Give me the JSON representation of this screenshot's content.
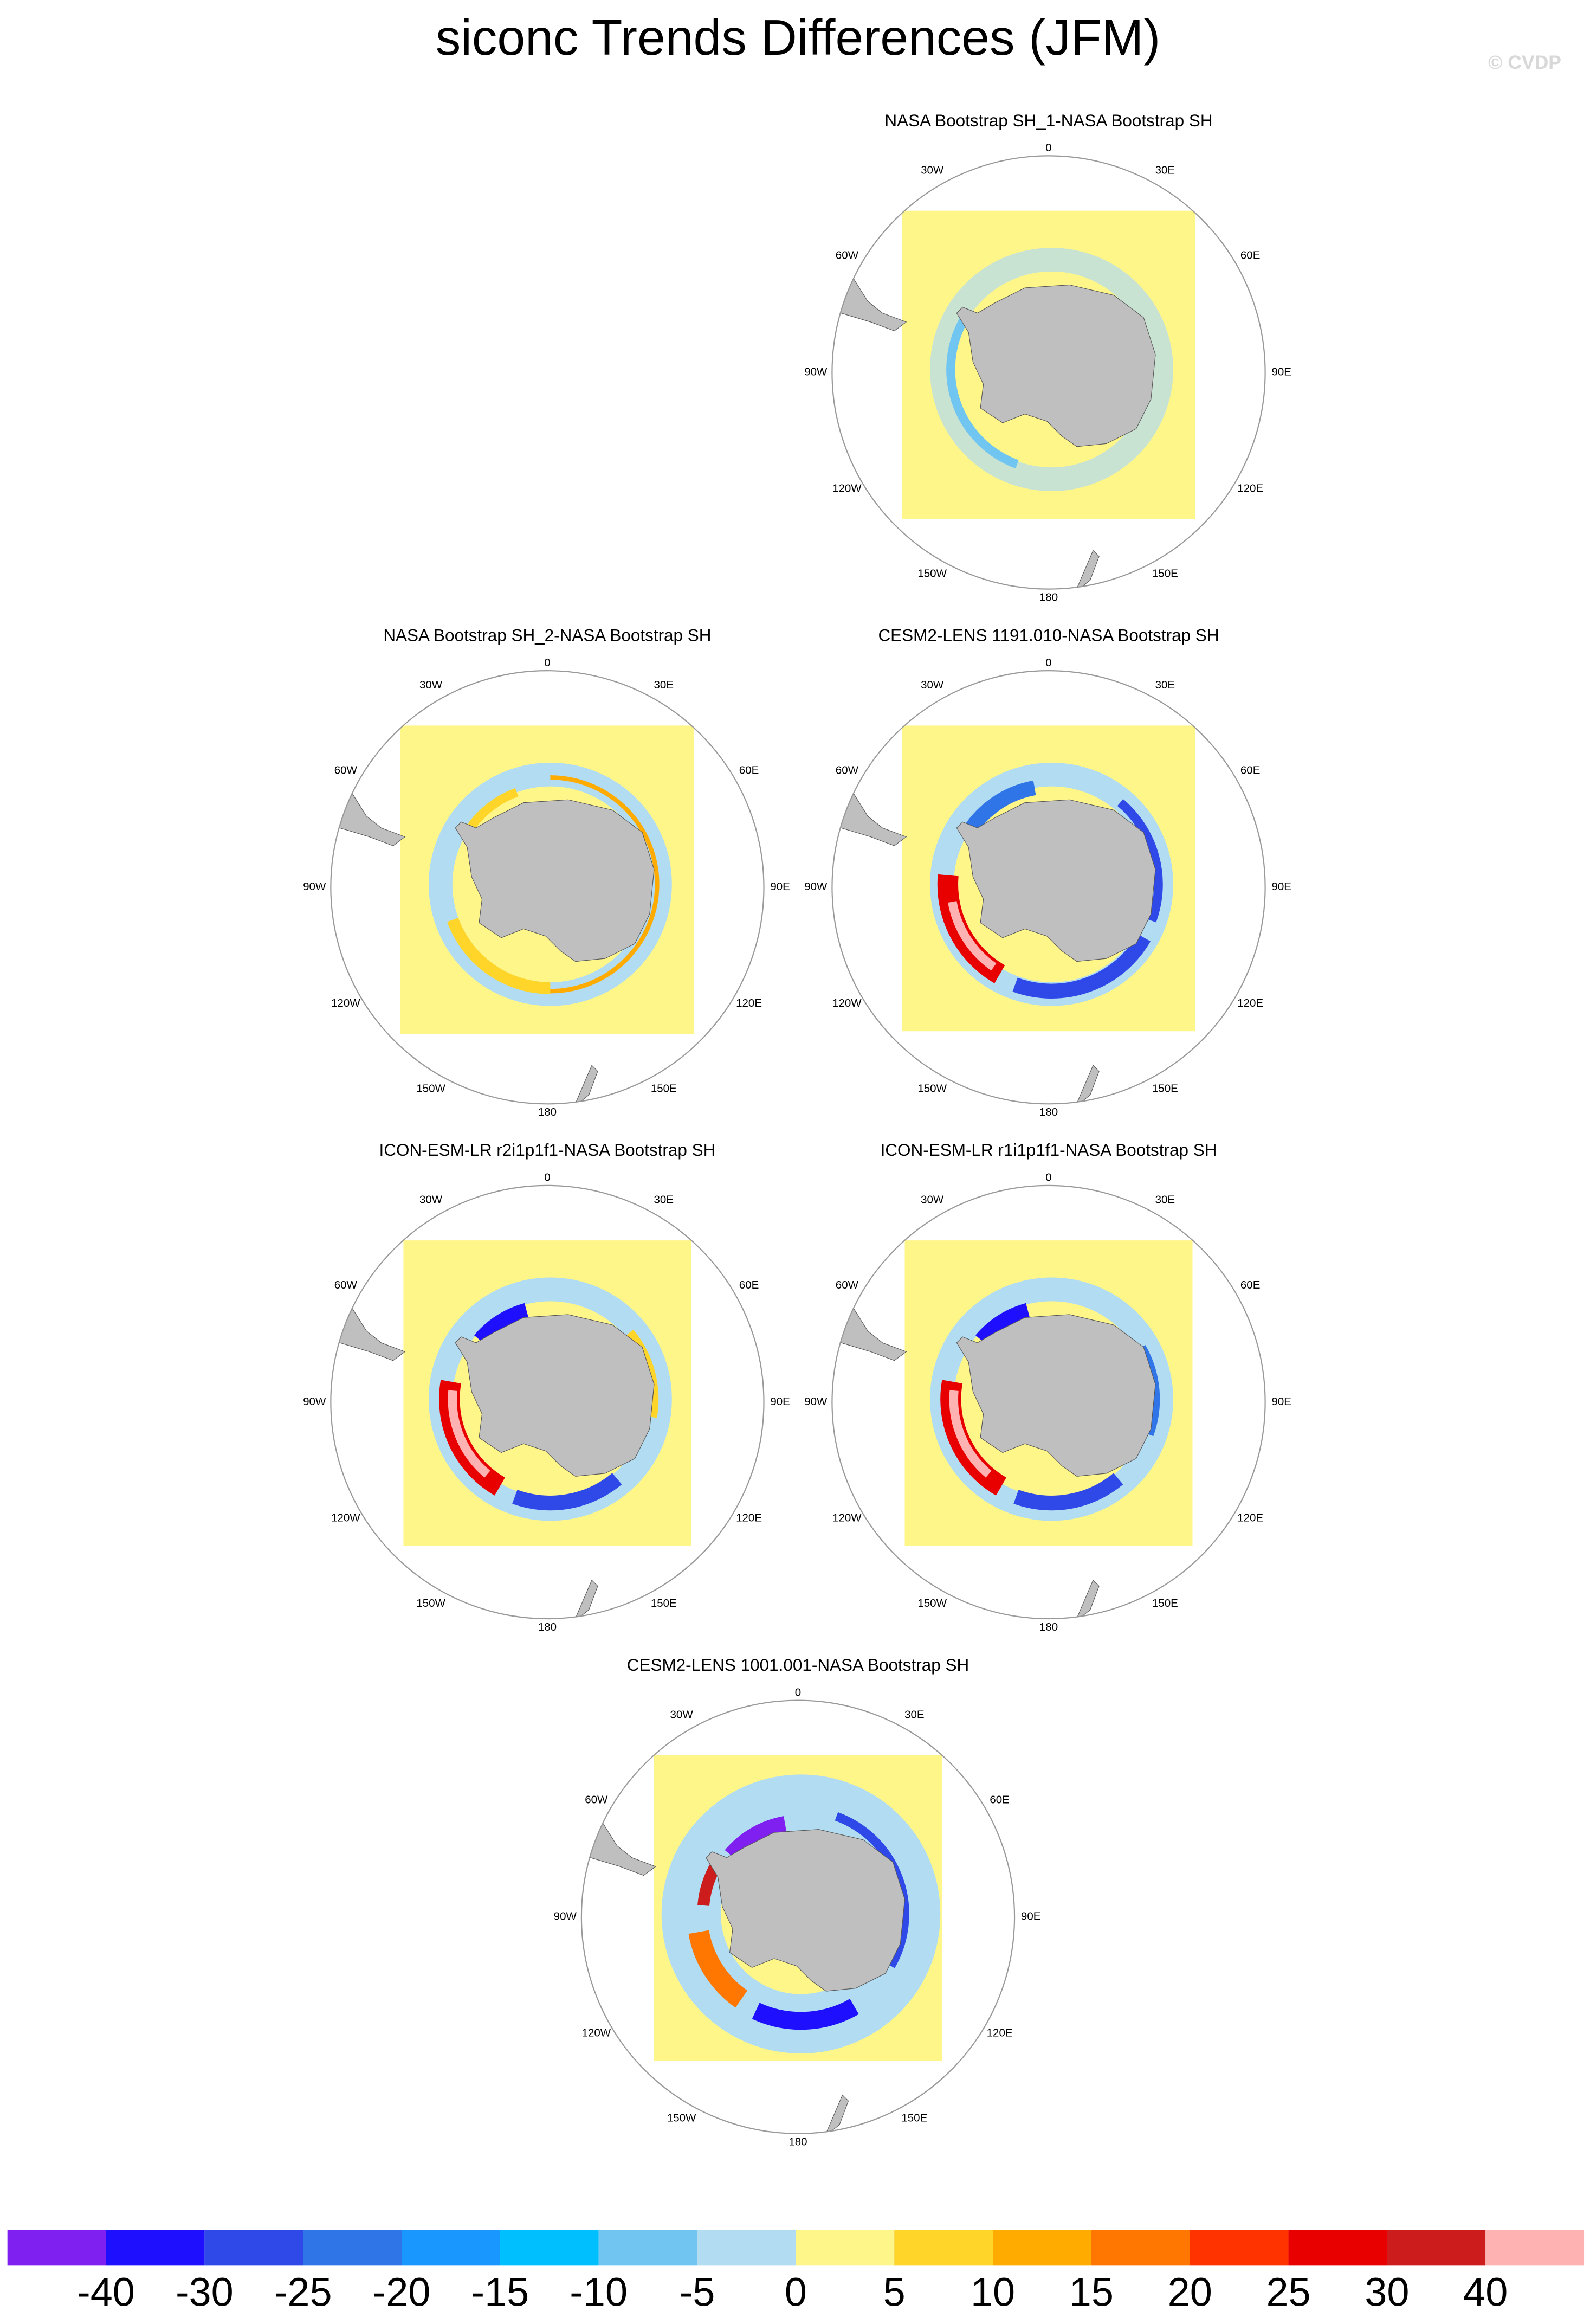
{
  "title": "siconc Trends Differences (JFM)",
  "watermark": "© CVDP",
  "longitude_labels": [
    "0",
    "30E",
    "60E",
    "90E",
    "120E",
    "150E",
    "180",
    "150W",
    "120W",
    "90W",
    "60W",
    "30W"
  ],
  "panels": [
    {
      "title": "NASA Bootstrap SH_1-NASA Bootstrap SH"
    },
    {
      "title": "NASA Bootstrap SH_2-NASA Bootstrap SH"
    },
    {
      "title": "CESM2-LENS 1191.010-NASA Bootstrap SH"
    },
    {
      "title": "ICON-ESM-LR r2i1p1f1-NASA Bootstrap SH"
    },
    {
      "title": "ICON-ESM-LR r1i1p1f1-NASA Bootstrap SH"
    },
    {
      "title": "CESM2-LENS 1001.001-NASA Bootstrap SH"
    }
  ],
  "colorbar": {
    "labels": [
      -40,
      -30,
      -25,
      -20,
      -15,
      -10,
      -5,
      0,
      5,
      10,
      15,
      20,
      25,
      30,
      40
    ],
    "colors": [
      "#8020f0",
      "#1e10ff",
      "#2f48e8",
      "#3075e8",
      "#1a96ff",
      "#00bfff",
      "#70c6f0",
      "#b2dcf2",
      "#fff68a",
      "#ffd52a",
      "#ffab00",
      "#ff7700",
      "#ff3300",
      "#e80000",
      "#cc1c1c",
      "#ffb2b2"
    ]
  }
}
